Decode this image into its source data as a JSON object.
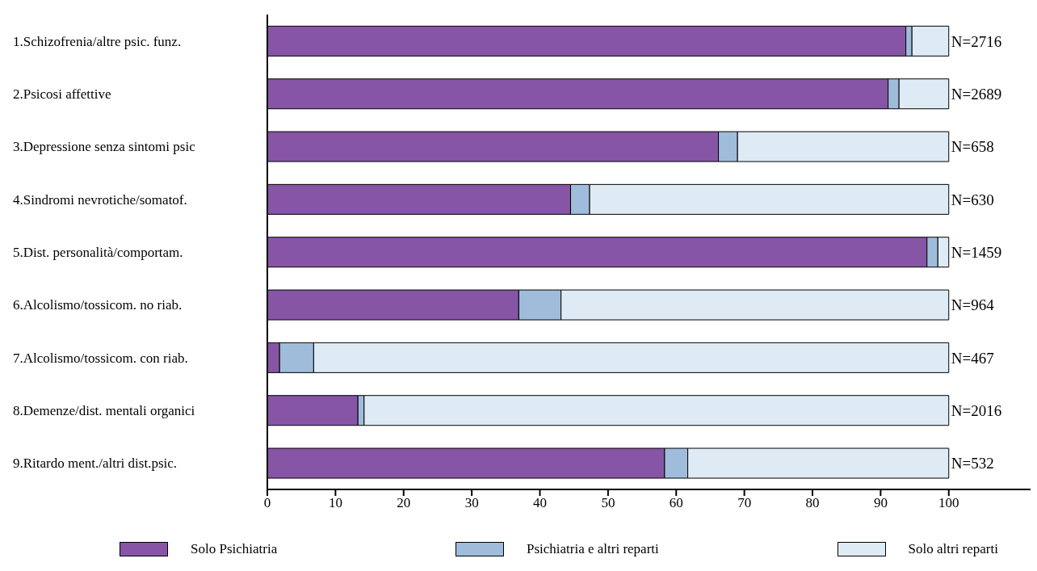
{
  "chart_data": {
    "type": "bar",
    "orientation": "horizontal",
    "stacked": true,
    "categories": [
      "1.Schizofrenia/altre psic. funz.",
      "2.Psicosi affettive",
      "3.Depressione senza sintomi psic",
      "4.Sindromi nevrotiche/somatof.",
      "5.Dist. personalità/comportam.",
      "6.Alcolismo/tossicom. no riab.",
      "7.Alcolismo/tossicom. con riab.",
      "8.Demenze/dist. mentali organici",
      "9.Ritardo ment./altri dist.psic."
    ],
    "series": [
      {
        "name": "Solo Psichiatria",
        "color": "#8755a5",
        "values": [
          93.7,
          91.1,
          66.2,
          44.5,
          96.8,
          36.9,
          1.8,
          13.3,
          58.3
        ]
      },
      {
        "name": "Psichiatria e altri reparti",
        "color": "#9fbcdb",
        "values": [
          0.9,
          1.6,
          2.8,
          2.8,
          1.6,
          6.2,
          5.0,
          0.9,
          3.4
        ]
      },
      {
        "name": "Solo altri reparti",
        "color": "#deebf4",
        "values": [
          5.4,
          7.3,
          31.0,
          52.7,
          1.6,
          56.9,
          93.2,
          85.8,
          38.3
        ]
      }
    ],
    "xlim": [
      0,
      112
    ],
    "xticks": [
      0,
      10,
      20,
      30,
      40,
      50,
      60,
      70,
      80,
      90,
      100
    ],
    "grid": false,
    "legend": "bottom",
    "annotations": [
      "N=2716",
      "N=2689",
      "N=658",
      "N=630",
      "N=1459",
      "N=964",
      "N=467",
      "N=2016",
      "N=532"
    ]
  }
}
